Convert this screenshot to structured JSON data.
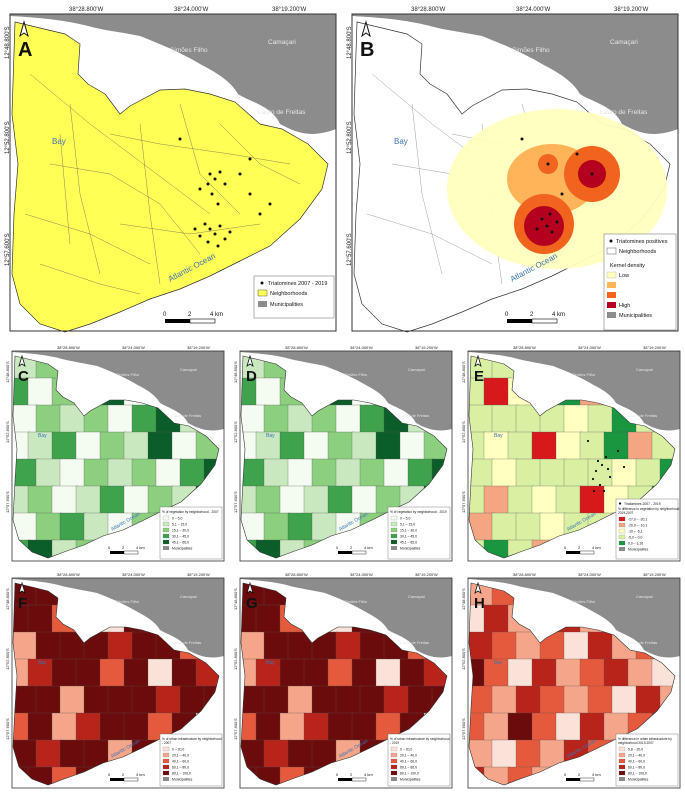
{
  "coords": {
    "top_big": [
      "38°28.800'W",
      "38°24.000'W",
      "38°19.200'W"
    ],
    "left_big": [
      "12°48.800'S",
      "12°52.800'S",
      "12°57.600'S"
    ],
    "top_small": [
      "38°28.800'W",
      "38°24.000'W",
      "38°19.200'W"
    ],
    "left_small": [
      "12°48.800'S",
      "12°52.800'S",
      "12°57.600'S"
    ]
  },
  "places": {
    "simoes": "Simões Filho",
    "camacari": "Camaçari",
    "lauro": "Lauro de Freitas",
    "bay": "Bay",
    "ocean": "Atlantic Ocean"
  },
  "scale": {
    "zero": "0",
    "two": "2",
    "four": "4 km"
  },
  "panels": {
    "A": {
      "letter": "A",
      "legend": [
        "Triatomines 2007 - 2019",
        "Neighborhoods",
        "Municipalities"
      ]
    },
    "B": {
      "letter": "B",
      "legend": [
        "Triatomines positives",
        "Neighborhoods",
        "Kernel density",
        "Low",
        "High",
        "Municipalities"
      ]
    },
    "C": {
      "letter": "C",
      "legend_title": "% of vegetation by neighborhood - 2007",
      "classes": [
        "0 – 5,0",
        "5,1 – 15,0",
        "15,1 – 30,0",
        "30,1 – 45,0",
        "45,1 – 65,0"
      ],
      "municipalities": "Municipalities"
    },
    "D": {
      "letter": "D",
      "legend_title": "% of vegetation by neighborhood - 2019",
      "classes": [
        "0 – 5,0",
        "5,1 – 15,0",
        "15,1 – 30,0",
        "30,1 – 45,0",
        "45,1 – 65,0"
      ],
      "municipalities": "Municipalities"
    },
    "E": {
      "letter": "E",
      "dots": "Triatomines 2007 - 2019",
      "legend_title": "% difference in vegetation by neighborhood 2019-2007",
      "classes": [
        "-27,0 – -20,1",
        "-20,0 – -10,1",
        "-10 – -5,1",
        "-5,0 – 0,0",
        "0,0 – 3,16"
      ],
      "municipalities": "Municipalities"
    },
    "F": {
      "letter": "F",
      "legend_title": "% of urban infrastructure by neighborhood - 2007",
      "classes": [
        "0 – 20,0",
        "20,1 – 40,0",
        "40,1 – 60,0",
        "60,1 – 80,0",
        "80,1 – 100,0"
      ],
      "municipalities": "Municipalities"
    },
    "G": {
      "letter": "G",
      "legend_title": "% of urban infrastructure by neighborhood - 2019",
      "classes": [
        "0 – 20,0",
        "20,1 – 40,0",
        "40,1 – 60,0",
        "60,1 – 80,0",
        "80,1 – 100,0"
      ],
      "municipalities": "Municipalities"
    },
    "H": {
      "letter": "H",
      "legend_title": "% difference in urban infrastructure by neighborhood 2019-2007",
      "classes": [
        "5,8 – 20,0",
        "20,1 – 40,0",
        "40,1 – 60,0",
        "60,1 – 80,0",
        "80,1 – 100,0"
      ],
      "municipalities": "Municipalities"
    }
  },
  "colors": {
    "gray": "#8c8c8c",
    "sea": "#ffffff",
    "yellow": "#ffff55",
    "veg": [
      "#f4fbf1",
      "#c9e8bf",
      "#8bcf7f",
      "#3fa34d",
      "#0b5e2a"
    ],
    "vegdiff": [
      "#d7191c",
      "#f4a582",
      "#ffffbf",
      "#d9f0a3",
      "#1a9641"
    ],
    "urban": [
      "#fbe2d9",
      "#f4a58a",
      "#e55a3c",
      "#b8231a",
      "#6b0b0b"
    ],
    "kernel": [
      "#ffffbe",
      "#ffb45a",
      "#f0641e",
      "#b4001e"
    ]
  }
}
